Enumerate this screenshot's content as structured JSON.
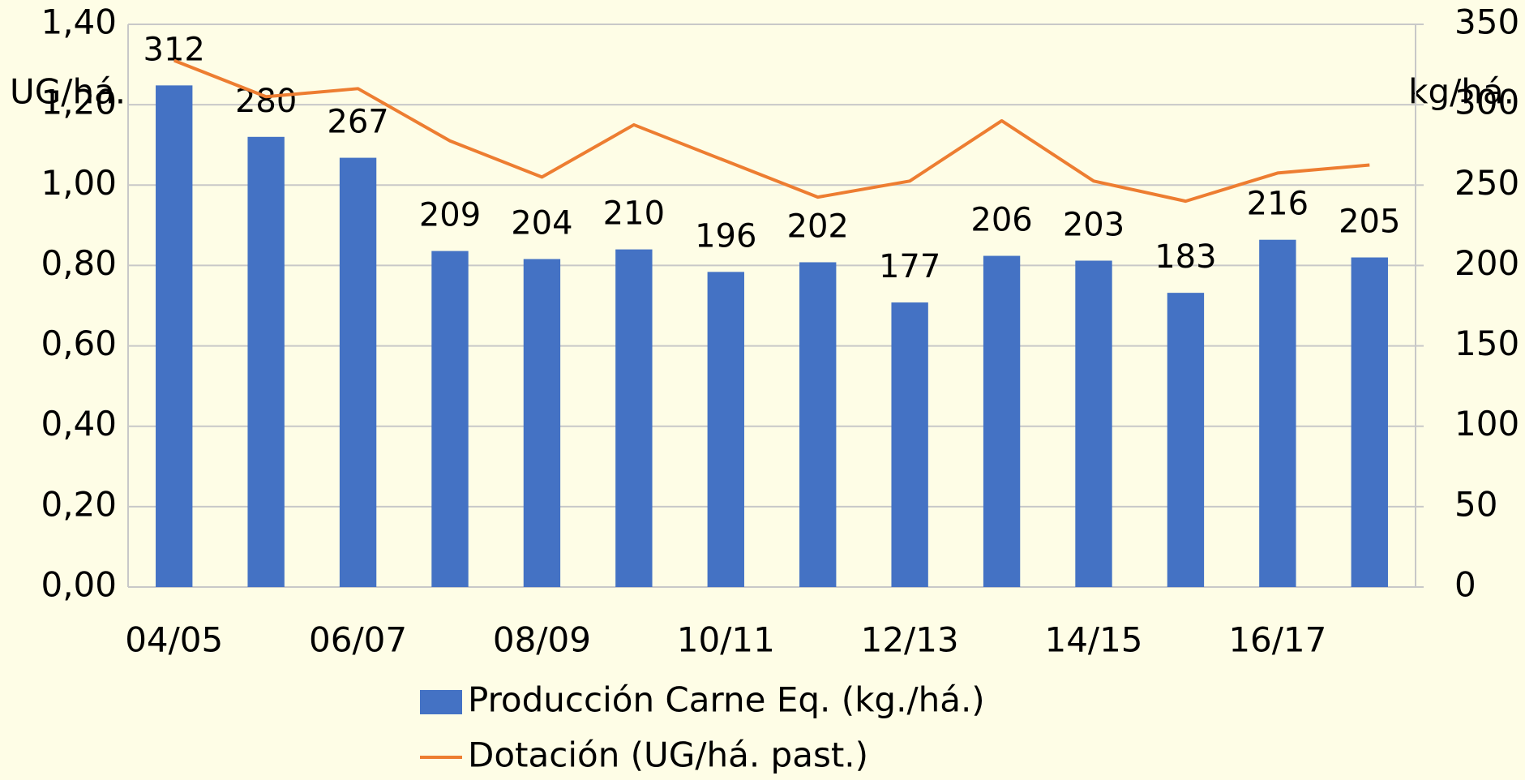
{
  "chart_data": {
    "type": "bar",
    "categories": [
      "04/05",
      null,
      "06/07",
      null,
      "08/09",
      null,
      "10/11",
      null,
      "12/13",
      null,
      "14/15",
      null,
      "16/17",
      null
    ],
    "series": [
      {
        "name": "Producción Carne Eq. (kg./há.)",
        "type": "bar",
        "axis": "y2",
        "color": "#4472c4",
        "values": [
          312,
          280,
          267,
          209,
          204,
          210,
          196,
          202,
          177,
          206,
          203,
          183,
          216,
          205
        ]
      },
      {
        "name": "Dotación (UG/há. past.)",
        "type": "line",
        "axis": "y",
        "color": "#ed7d31",
        "values": [
          1.31,
          1.22,
          1.24,
          1.11,
          1.02,
          1.15,
          1.06,
          0.97,
          1.01,
          1.16,
          1.01,
          0.96,
          1.03,
          1.05
        ]
      }
    ],
    "ylabel": "UG/há.",
    "y2label": "kg/há.",
    "ylim": [
      0,
      1.4
    ],
    "yticks": [
      {
        "value": 0,
        "label": "0,00"
      },
      {
        "value": 0.2,
        "label": "0,20"
      },
      {
        "value": 0.4,
        "label": "0,40"
      },
      {
        "value": 0.6,
        "label": "0,60"
      },
      {
        "value": 0.8,
        "label": "0,80"
      },
      {
        "value": 1.0,
        "label": "1,00"
      },
      {
        "value": 1.2,
        "label": "1,20"
      },
      {
        "value": 1.4,
        "label": "1,40"
      }
    ],
    "y2lim": [
      0,
      350
    ],
    "y2ticks": [
      0,
      50,
      100,
      150,
      200,
      250,
      300,
      350
    ],
    "grid": true,
    "legend": "bottom"
  }
}
